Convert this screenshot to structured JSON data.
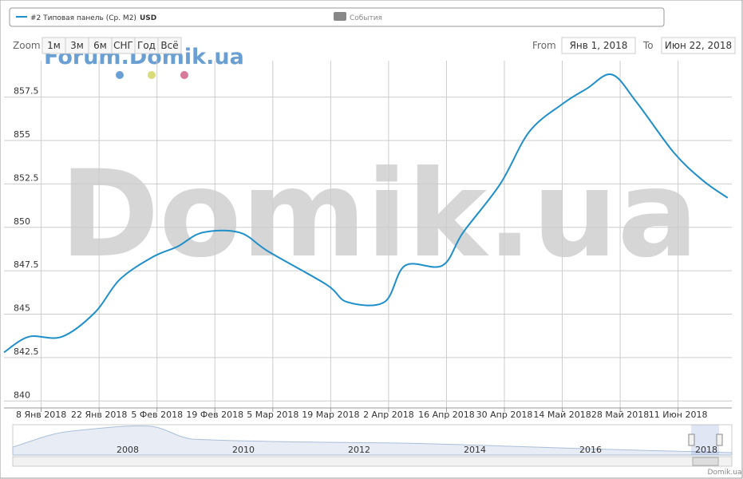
{
  "chart_data": {
    "type": "line",
    "x": [
      "2017-12-30",
      "2018-01-05",
      "2018-01-13",
      "2018-01-21",
      "2018-01-27",
      "2018-02-04",
      "2018-02-10",
      "2018-02-16",
      "2018-02-25",
      "2018-03-04",
      "2018-03-18",
      "2018-03-23",
      "2018-04-01",
      "2018-04-06",
      "2018-04-15",
      "2018-04-20",
      "2018-04-29",
      "2018-05-06",
      "2018-05-14",
      "2018-05-20",
      "2018-05-26",
      "2018-06-01",
      "2018-06-10",
      "2018-06-17",
      "2018-06-23"
    ],
    "series": [
      {
        "name": "#2 Типовая панель (Ср. М2)",
        "color": "#1f8fc9",
        "values": [
          842.8,
          843.7,
          843.7,
          845.1,
          847.0,
          848.3,
          848.9,
          849.7,
          849.7,
          848.6,
          846.7,
          845.7,
          845.7,
          847.8,
          847.8,
          849.7,
          852.5,
          855.5,
          857.1,
          858.0,
          858.8,
          857.2,
          854.3,
          852.7,
          851.7
        ]
      }
    ],
    "unit": "USD",
    "xlim": [
      "2017-12-30",
      "2018-06-24"
    ],
    "xticks": [
      {
        "value": "2018-01-08",
        "label": "8 Янв 2018"
      },
      {
        "value": "2018-01-22",
        "label": "22 Янв 2018"
      },
      {
        "value": "2018-02-05",
        "label": "5 Фев 2018"
      },
      {
        "value": "2018-02-19",
        "label": "19 Фев 2018"
      },
      {
        "value": "2018-03-05",
        "label": "5 Мар 2018"
      },
      {
        "value": "2018-03-19",
        "label": "19 Мар 2018"
      },
      {
        "value": "2018-04-02",
        "label": "2 Апр 2018"
      },
      {
        "value": "2018-04-16",
        "label": "16 Апр 2018"
      },
      {
        "value": "2018-04-30",
        "label": "30 Апр 2018"
      },
      {
        "value": "2018-05-14",
        "label": "14 Май 2018"
      },
      {
        "value": "2018-05-28",
        "label": "28 Май 2018"
      },
      {
        "value": "2018-06-11",
        "label": "11 Июн 2018"
      }
    ],
    "ylim": [
      839.6,
      859.6
    ],
    "yticks": [
      840,
      842.5,
      845,
      847.5,
      850,
      852.5,
      855,
      857.5
    ],
    "grid": true
  },
  "ui": {
    "events": "События",
    "zoom": "Zoom",
    "buttons": [
      "1м",
      "3м",
      "6м",
      "СНГ",
      "Год",
      "Всё"
    ],
    "from": "From",
    "from_value": "Янв 1, 2018",
    "to": "To",
    "to_value": "Июн 22, 2018",
    "watermark_small": "Forum.Domik.ua",
    "watermark_big": "Domik.ua",
    "navigator_years": [
      "2008",
      "2010",
      "2012",
      "2014",
      "2016",
      "2018"
    ],
    "credits": "Domik.ua"
  }
}
